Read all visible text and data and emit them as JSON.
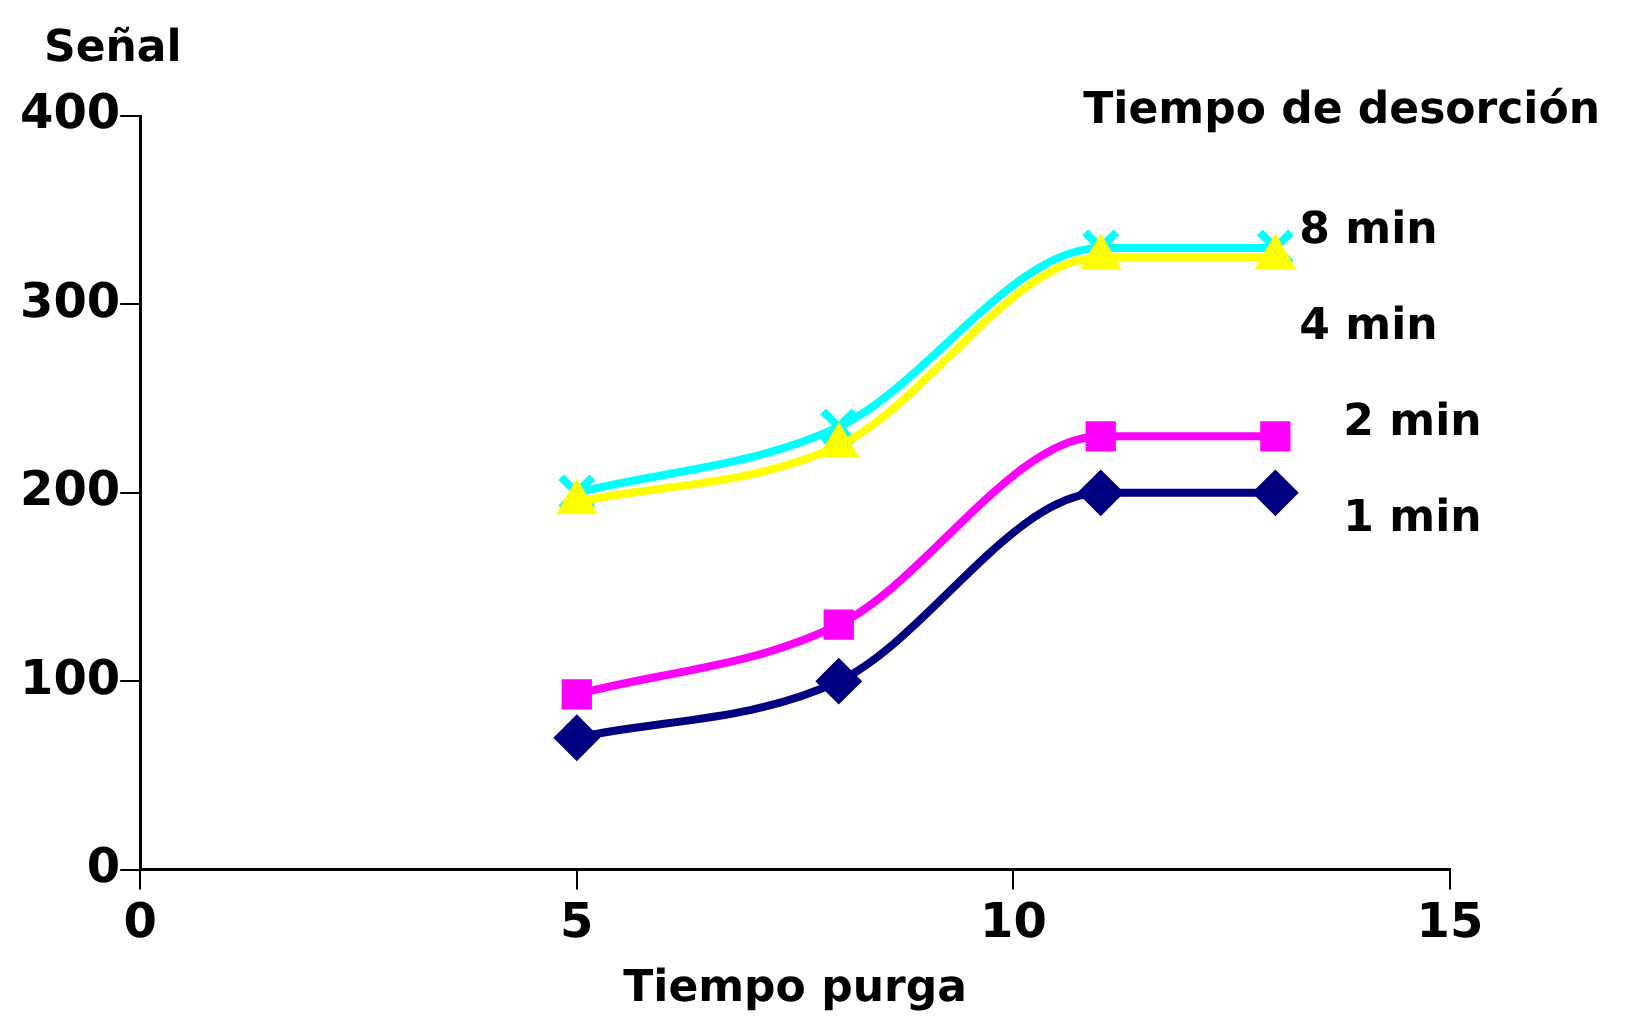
{
  "chart_data": {
    "type": "line",
    "xlabel": "Tiempo purga",
    "ylabel": "Señal",
    "legend_title": "Tiempo de desorción",
    "legend": "right",
    "xlim": [
      0,
      15
    ],
    "xticks": [
      0,
      5,
      10,
      15
    ],
    "ylim": [
      0,
      400
    ],
    "yticks": [
      0,
      100,
      200,
      300,
      400
    ],
    "grid": false,
    "series": [
      {
        "name": "1 min",
        "color": "#000080",
        "marker": "diamond",
        "x": [
          5,
          8,
          11,
          13
        ],
        "values": [
          70,
          100,
          200,
          200
        ]
      },
      {
        "name": "2 min",
        "color": "#ff00ff",
        "marker": "square",
        "x": [
          5,
          8,
          11,
          13
        ],
        "values": [
          93,
          130,
          230,
          230
        ]
      },
      {
        "name": "4 min",
        "color": "#ffff00",
        "marker": "triangle",
        "x": [
          5,
          8,
          11,
          13
        ],
        "values": [
          195,
          225,
          325,
          325
        ]
      },
      {
        "name": "8 min",
        "color": "#00ffff",
        "marker": "cross",
        "x": [
          5,
          8,
          11,
          13
        ],
        "values": [
          200,
          235,
          330,
          330
        ]
      }
    ]
  }
}
